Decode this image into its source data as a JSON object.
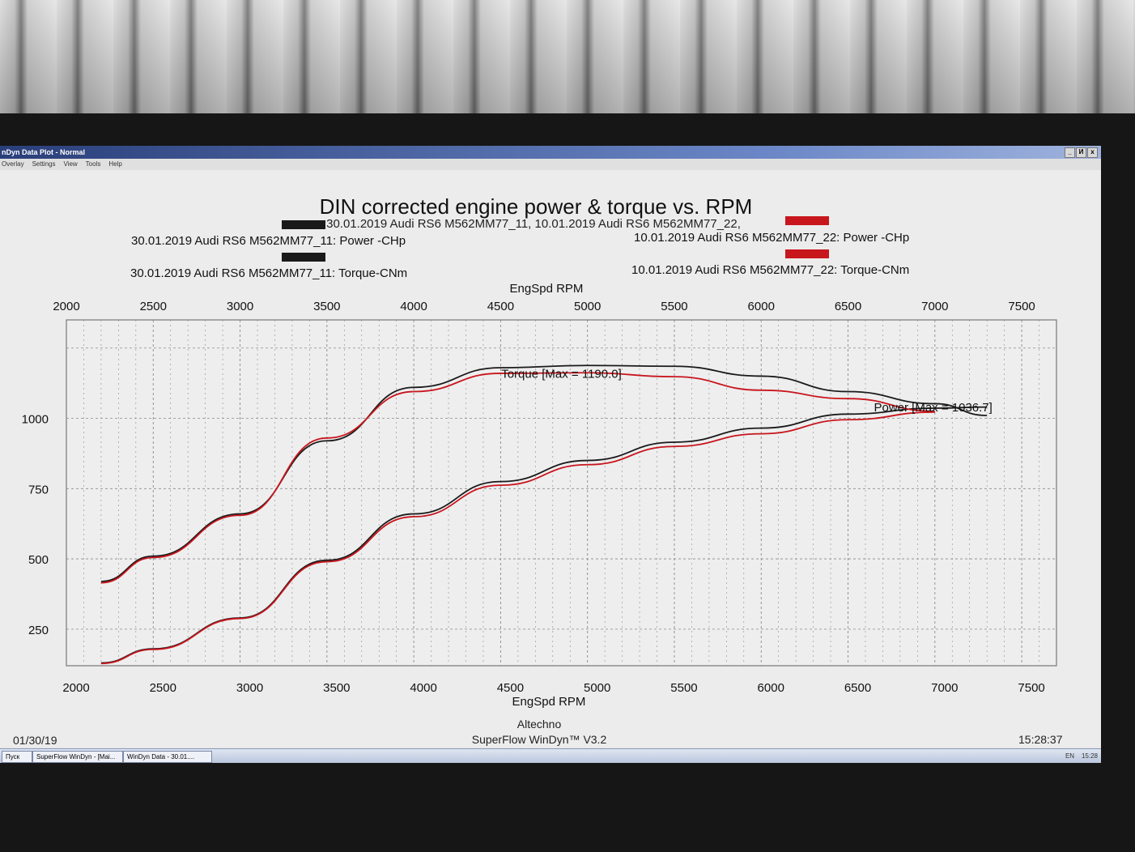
{
  "window": {
    "title": "nDyn Data Plot - Normal",
    "menu": [
      "Overlay",
      "Settings",
      "View",
      "Tools",
      "Help"
    ],
    "buttons": [
      "_",
      "И",
      "x"
    ]
  },
  "taskbar": {
    "items": [
      "Пуск",
      "SuperFlow WinDyn - [Mai...",
      "WinDyn Data - 30.01...."
    ],
    "lang": "EN",
    "clock": "15:28"
  },
  "footer": {
    "date": "01/30/19",
    "company": "Altechno",
    "software": "SuperFlow WinDyn™ V3.2",
    "time": "15:28:37"
  },
  "colors": {
    "run1": "#1a1a1a",
    "run2": "#c8161d",
    "grid": "#7a7a7a"
  },
  "chart_data": {
    "type": "line",
    "title": "DIN corrected engine power & torque vs. RPM",
    "subtitle": "30.01.2019 Audi RS6 M562MM77_11, 10.01.2019 Audi RS6 M562MM77_22,",
    "xlabel": "EngSpd RPM",
    "xlim": [
      2000,
      7700
    ],
    "ylim": [
      120,
      1350
    ],
    "xticks": [
      2000,
      2500,
      3000,
      3500,
      4000,
      4500,
      5000,
      5500,
      6000,
      6500,
      7000,
      7500
    ],
    "yticks": [
      250,
      500,
      750,
      1000
    ],
    "grid": true,
    "legend": [
      "30.01.2019 Audi RS6 M562MM77_11: Power -CHp",
      "30.01.2019 Audi RS6 M562MM77_11: Torque-CNm",
      "10.01.2019 Audi RS6 M562MM77_22: Power -CHp",
      "10.01.2019 Audi RS6 M562MM77_22: Torque-CNm"
    ],
    "annotations": [
      "Torque [Max = 1190.0]",
      "Power [Max = 1036.7]"
    ],
    "x": [
      2200,
      2500,
      3000,
      3500,
      4000,
      4500,
      5000,
      5500,
      6000,
      6500,
      7000,
      7300
    ],
    "series": [
      {
        "name": "30.01.2019 Audi RS6 M562MM77_11: Torque-CNm",
        "color": "#1a1a1a",
        "values": [
          420,
          510,
          660,
          920,
          1110,
          1180,
          1188,
          1185,
          1150,
          1095,
          1052,
          1010
        ]
      },
      {
        "name": "30.01.2019 Audi RS6 M562MM77_11: Power -CHp",
        "color": "#1a1a1a",
        "values": [
          130,
          180,
          290,
          495,
          660,
          775,
          850,
          915,
          965,
          1015,
          1036,
          1040
        ]
      },
      {
        "name": "10.01.2019 Audi RS6 M562MM77_22: Torque-CNm",
        "color": "#c8161d",
        "values": [
          415,
          505,
          655,
          930,
          1095,
          1160,
          1162,
          1148,
          1100,
          1070,
          1025,
          null
        ]
      },
      {
        "name": "10.01.2019 Audi RS6 M562MM77_22: Power -CHp",
        "color": "#c8161d",
        "values": [
          128,
          178,
          288,
          490,
          650,
          762,
          835,
          900,
          945,
          995,
          1022,
          null
        ]
      }
    ]
  }
}
